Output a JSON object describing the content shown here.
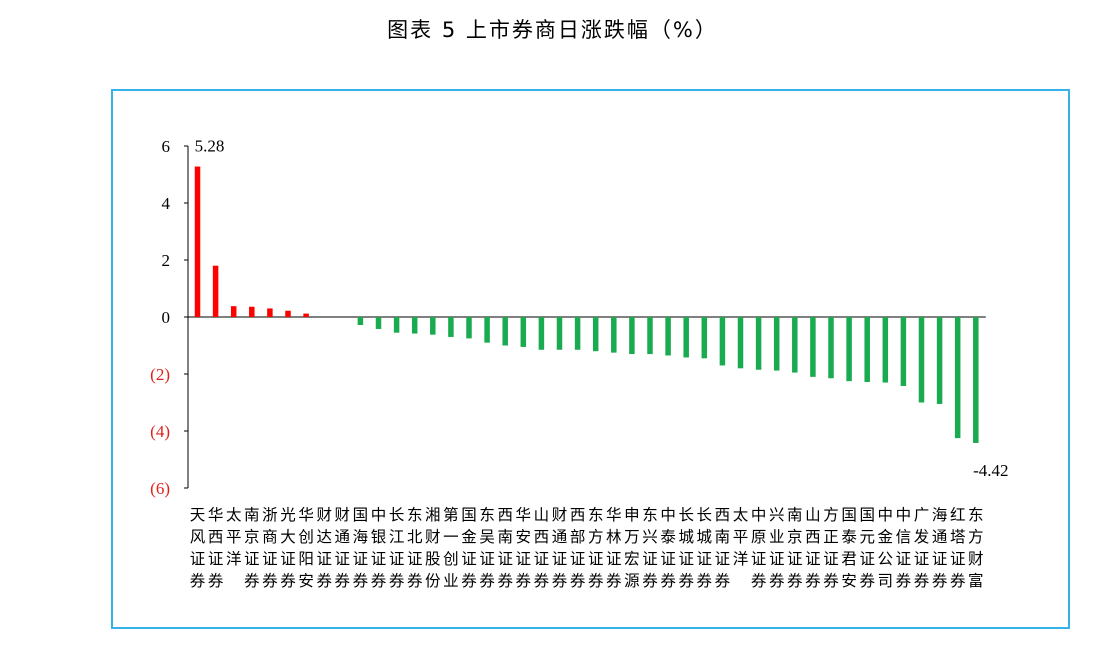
{
  "chart_data": {
    "type": "bar",
    "title": "图表 5  上市券商日涨跌幅（%）",
    "xlabel": "",
    "ylabel": "",
    "ylim": [
      -6,
      6
    ],
    "yticks": [
      {
        "value": 6,
        "label": "6"
      },
      {
        "value": 4,
        "label": "4"
      },
      {
        "value": 2,
        "label": "2"
      },
      {
        "value": 0,
        "label": "0"
      },
      {
        "value": -2,
        "label": "(2)"
      },
      {
        "value": -4,
        "label": "(4)"
      },
      {
        "value": -6,
        "label": "(6)"
      }
    ],
    "positive_color": "#ff0000",
    "negative_color": "#1aab50",
    "grid": false,
    "categories": [
      "天风证券",
      "华西证券",
      "太平洋",
      "南京证券",
      "浙商证券",
      "光大证券",
      "华创阳安",
      "财达证券",
      "财通证券",
      "国海证券",
      "中银证券",
      "长江证券",
      "东北证券",
      "湘财股份",
      "第一创业",
      "国金证券",
      "东吴证券",
      "西南证券",
      "华安证券",
      "山西证券",
      "财通证券",
      "西部证券",
      "东方证券",
      "华林证券",
      "申万宏源",
      "东兴证券",
      "中泰证券",
      "长城证券",
      "长城证券",
      "西南证券",
      "太平洋",
      "中原证券",
      "兴业证券",
      "南京证券",
      "山西证券",
      "方正证券",
      "国泰君安",
      "国元证券",
      "中金公司",
      "中信证券",
      "广发证券",
      "海通证券",
      "红塔证券",
      "东方财富"
    ],
    "values": [
      5.28,
      1.8,
      0.38,
      0.36,
      0.3,
      0.22,
      0.12,
      0.0,
      0.0,
      -0.28,
      -0.42,
      -0.55,
      -0.58,
      -0.62,
      -0.7,
      -0.75,
      -0.9,
      -1.0,
      -1.05,
      -1.15,
      -1.15,
      -1.15,
      -1.2,
      -1.25,
      -1.3,
      -1.3,
      -1.35,
      -1.42,
      -1.45,
      -1.7,
      -1.8,
      -1.85,
      -1.88,
      -1.95,
      -2.1,
      -2.15,
      -2.25,
      -2.28,
      -2.3,
      -2.42,
      -3.0,
      -3.05,
      -4.25,
      -4.42
    ],
    "data_labels": [
      {
        "index": 0,
        "text": "5.28"
      },
      {
        "index": 43,
        "text": "-4.42"
      }
    ]
  }
}
